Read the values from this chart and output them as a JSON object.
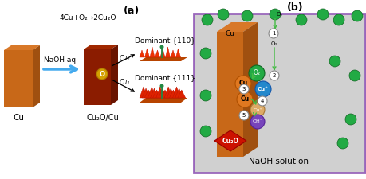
{
  "fig_width": 4.6,
  "fig_height": 2.25,
  "dpi": 100,
  "bg_color": "#ffffff",
  "cu_front": "#c86818",
  "cu_top": "#d87828",
  "cu_side": "#a05010",
  "cu2o_front": "#8b1c00",
  "cu2o_top": "#a02800",
  "cu2o_side": "#6a1400",
  "red_base": "#bb2200",
  "red_tri": "#ee3300",
  "red_tri_edge": "#cc1100",
  "green_circle": "#22aa44",
  "green_dark": "#116622",
  "arrow_blue": "#44aaee",
  "arrow_green": "#44bb44",
  "naoh_bg": "#d0d0d0",
  "naoh_border": "#9966bb",
  "label_a": "(a)",
  "label_b": "(b)",
  "reaction_eq": "4Cu+O₂→2Cu₂O",
  "naoh_label": "NaOH aq.",
  "cu_label": "Cu",
  "cu2o_cu_label": "Cu₂O/Cu",
  "dom111_label": "Dominant {111}",
  "dom110_label": "Dominant {110}",
  "naoh_solution_label": "NaOH solution",
  "cu1_label": "Cu₁",
  "cu2_label": "Cu₂"
}
